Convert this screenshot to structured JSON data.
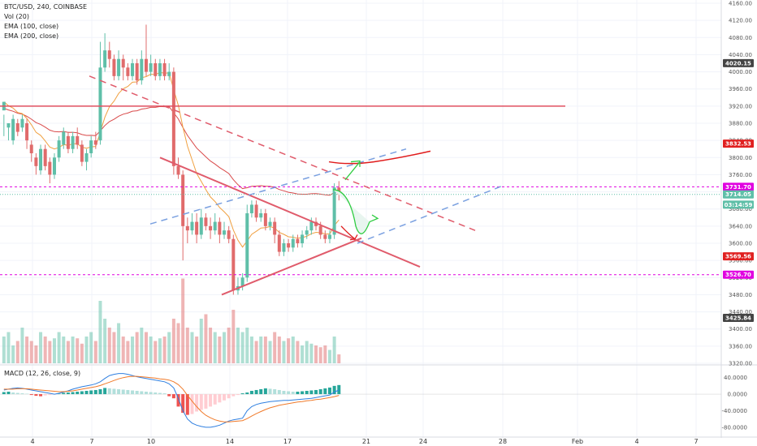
{
  "header": {
    "symbol_line": "BTC/USD, 240, COINBASE",
    "vol_line": "Vol (20)",
    "ema100_line": "EMA (100, close)",
    "ema200_line": "EMA (200, close)",
    "macd_line": "MACD (12, 26, close, 9)"
  },
  "colors": {
    "up": "#5fbfa8",
    "down": "#e06b6b",
    "ema100": "#d94a4a",
    "ema200": "#f0a040",
    "macd": "#2f7fe0",
    "signal": "#f07a2a",
    "magenta": "#e000e0",
    "hline": "#e05060",
    "blue_dash": "#7aa0e0",
    "green_arrow": "#2ecc40"
  },
  "chart_data": {
    "type": "candlestick",
    "price_axis": {
      "ticks": [
        "4160.00",
        "4120.00",
        "4080.00",
        "4040.00",
        "4000.00",
        "3960.00",
        "3920.00",
        "3880.00",
        "3840.00",
        "3800.00",
        "3760.00",
        "3720.00",
        "3680.00",
        "3640.00",
        "3600.00",
        "3560.00",
        "3520.00",
        "3480.00",
        "3440.00",
        "3400.00",
        "3360.00",
        "3320.00"
      ],
      "range": [
        3320,
        4160
      ]
    },
    "time_axis": {
      "ticks": [
        "4",
        "7",
        "10",
        "14",
        "17",
        "21",
        "24",
        "28",
        "Feb",
        "4",
        "7"
      ]
    },
    "price_labels": [
      {
        "text": "4020.15",
        "price": 4020.15,
        "color": "#444444"
      },
      {
        "text": "3832.53",
        "price": 3832.53,
        "color": "#e02020"
      },
      {
        "text": "3731.70",
        "price": 3731.7,
        "color": "#e000e0"
      },
      {
        "text": "3714.05",
        "price": 3714.05,
        "color": "#5fbfa8"
      },
      {
        "text": "03:14:59",
        "price": 3690,
        "color": "#5fbfa8"
      },
      {
        "text": "3569.56",
        "price": 3569.56,
        "color": "#e02020"
      },
      {
        "text": "3526.70",
        "price": 3526.7,
        "color": "#e000e0"
      },
      {
        "text": "3425.84",
        "price": 3425.84,
        "color": "#444444"
      }
    ],
    "macd_axis": {
      "ticks": [
        "40.0000",
        "0.0000",
        "-40.0000",
        "-80.0000"
      ],
      "range": [
        -90,
        55
      ]
    },
    "candles": [
      [
        3910,
        3930,
        3900,
        3850
      ],
      [
        3870,
        3880,
        3880,
        3840
      ],
      [
        3840,
        3890,
        3900,
        3830
      ],
      [
        3880,
        3860,
        3890,
        3850
      ],
      [
        3870,
        3890,
        3900,
        3860
      ],
      [
        3880,
        3840,
        3890,
        3820
      ],
      [
        3830,
        3810,
        3840,
        3790
      ],
      [
        3800,
        3780,
        3810,
        3760
      ],
      [
        3770,
        3820,
        3830,
        3760
      ],
      [
        3820,
        3780,
        3830,
        3770
      ],
      [
        3790,
        3760,
        3800,
        3740
      ],
      [
        3760,
        3800,
        3810,
        3750
      ],
      [
        3800,
        3840,
        3850,
        3790
      ],
      [
        3830,
        3860,
        3870,
        3820
      ],
      [
        3850,
        3820,
        3860,
        3810
      ],
      [
        3820,
        3850,
        3860,
        3810
      ],
      [
        3850,
        3830,
        3870,
        3820
      ],
      [
        3830,
        3790,
        3840,
        3780
      ],
      [
        3790,
        3810,
        3820,
        3770
      ],
      [
        3810,
        3840,
        3850,
        3800
      ],
      [
        3840,
        3830,
        3860,
        3820
      ],
      [
        3840,
        4010,
        4070,
        3830
      ],
      [
        4010,
        4050,
        4090,
        4000
      ],
      [
        4050,
        4030,
        4070,
        4010
      ],
      [
        4030,
        3990,
        4040,
        3980
      ],
      [
        3990,
        4030,
        4050,
        3980
      ],
      [
        4030,
        4010,
        4040,
        3980
      ],
      [
        4010,
        3990,
        4020,
        3980
      ],
      [
        3990,
        4020,
        4030,
        3980
      ],
      [
        4020,
        3980,
        4030,
        3970
      ],
      [
        3980,
        4030,
        4050,
        3970
      ],
      [
        4030,
        4000,
        4110,
        3990
      ],
      [
        4000,
        4020,
        4040,
        3990
      ],
      [
        4020,
        3990,
        4030,
        3980
      ],
      [
        3990,
        4020,
        4030,
        3980
      ],
      [
        4020,
        3990,
        4030,
        3980
      ],
      [
        3990,
        4000,
        4020,
        3980
      ],
      [
        4000,
        3780,
        4010,
        3760
      ],
      [
        3780,
        3760,
        3800,
        3750
      ],
      [
        3760,
        3640,
        3770,
        3560
      ],
      [
        3640,
        3630,
        3660,
        3600
      ],
      [
        3630,
        3650,
        3670,
        3620
      ],
      [
        3650,
        3620,
        3670,
        3600
      ],
      [
        3620,
        3660,
        3680,
        3610
      ],
      [
        3660,
        3640,
        3670,
        3630
      ],
      [
        3640,
        3630,
        3660,
        3610
      ],
      [
        3630,
        3650,
        3670,
        3620
      ],
      [
        3650,
        3620,
        3660,
        3600
      ],
      [
        3620,
        3630,
        3650,
        3610
      ],
      [
        3630,
        3610,
        3640,
        3600
      ],
      [
        3610,
        3490,
        3620,
        3480
      ],
      [
        3490,
        3500,
        3520,
        3480
      ],
      [
        3500,
        3520,
        3530,
        3490
      ],
      [
        3520,
        3670,
        3690,
        3510
      ],
      [
        3670,
        3690,
        3700,
        3660
      ],
      [
        3690,
        3660,
        3700,
        3650
      ],
      [
        3660,
        3670,
        3680,
        3650
      ],
      [
        3670,
        3640,
        3680,
        3630
      ],
      [
        3640,
        3650,
        3660,
        3630
      ],
      [
        3650,
        3620,
        3660,
        3600
      ],
      [
        3620,
        3580,
        3630,
        3570
      ],
      [
        3580,
        3600,
        3610,
        3570
      ],
      [
        3600,
        3590,
        3610,
        3580
      ],
      [
        3590,
        3610,
        3620,
        3580
      ],
      [
        3610,
        3600,
        3620,
        3590
      ],
      [
        3600,
        3620,
        3630,
        3590
      ],
      [
        3620,
        3630,
        3640,
        3610
      ],
      [
        3630,
        3650,
        3660,
        3620
      ],
      [
        3650,
        3640,
        3660,
        3630
      ],
      [
        3640,
        3620,
        3650,
        3610
      ],
      [
        3620,
        3610,
        3630,
        3600
      ],
      [
        3610,
        3620,
        3630,
        3600
      ],
      [
        3620,
        3730,
        3740,
        3610
      ],
      [
        3730,
        3714,
        3745,
        3700
      ]
    ],
    "volume": [
      30,
      35,
      20,
      25,
      40,
      30,
      25,
      20,
      35,
      30,
      25,
      28,
      35,
      30,
      25,
      30,
      28,
      22,
      30,
      35,
      25,
      70,
      50,
      40,
      35,
      45,
      30,
      25,
      30,
      35,
      40,
      35,
      30,
      25,
      28,
      30,
      35,
      50,
      45,
      95,
      40,
      35,
      30,
      50,
      55,
      40,
      35,
      30,
      35,
      40,
      60,
      40,
      35,
      40,
      30,
      25,
      30,
      30,
      25,
      35,
      30,
      25,
      28,
      30,
      25,
      20,
      25,
      22,
      20,
      18,
      20,
      15,
      30,
      10
    ],
    "macd_hist": [
      5,
      6,
      4,
      3,
      2,
      1,
      -2,
      -4,
      -5,
      -3,
      -2,
      -1,
      1,
      3,
      4,
      5,
      6,
      7,
      8,
      9,
      10,
      12,
      15,
      14,
      13,
      12,
      11,
      10,
      9,
      8,
      7,
      6,
      5,
      4,
      3,
      2,
      -5,
      -10,
      -30,
      -45,
      -50,
      -48,
      -42,
      -38,
      -35,
      -30,
      -25,
      -20,
      -15,
      -10,
      -5,
      -2,
      2,
      4,
      8,
      10,
      12,
      14,
      13,
      12,
      10,
      8,
      7,
      6,
      6,
      7,
      8,
      9,
      10,
      12,
      14,
      16,
      20,
      22
    ],
    "macd": [
      10,
      12,
      14,
      15,
      14,
      12,
      10,
      8,
      6,
      4,
      2,
      0,
      2,
      5,
      8,
      12,
      15,
      18,
      20,
      22,
      25,
      30,
      38,
      45,
      48,
      50,
      50,
      48,
      45,
      42,
      40,
      38,
      36,
      34,
      32,
      30,
      25,
      15,
      -10,
      -40,
      -60,
      -70,
      -75,
      -78,
      -80,
      -80,
      -78,
      -75,
      -70,
      -65,
      -62,
      -60,
      -58,
      -40,
      -30,
      -25,
      -22,
      -20,
      -18,
      -17,
      -16,
      -15,
      -15,
      -14,
      -13,
      -12,
      -11,
      -10,
      -8,
      -6,
      -4,
      -2,
      5,
      10
    ],
    "signal": [
      12,
      12,
      12,
      13,
      13,
      13,
      12,
      11,
      10,
      9,
      8,
      7,
      6,
      6,
      7,
      8,
      10,
      12,
      14,
      16,
      18,
      21,
      25,
      29,
      33,
      37,
      40,
      42,
      43,
      43,
      42,
      41,
      40,
      39,
      37,
      36,
      34,
      30,
      23,
      12,
      -3,
      -17,
      -30,
      -42,
      -51,
      -57,
      -62,
      -65,
      -67,
      -67,
      -66,
      -65,
      -64,
      -59,
      -53,
      -47,
      -42,
      -37,
      -33,
      -30,
      -27,
      -25,
      -23,
      -21,
      -19,
      -18,
      -16,
      -15,
      -13,
      -12,
      -10,
      -8,
      -6,
      -3
    ]
  }
}
